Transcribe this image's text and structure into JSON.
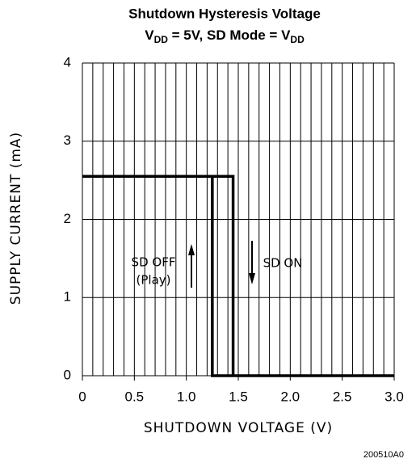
{
  "chart_data": {
    "type": "line",
    "title": "Shutdown Hysteresis Voltage",
    "subtitle": [
      "V",
      "DD",
      " = 5V, SD Mode = V",
      "DD"
    ],
    "x_label": "SHUTDOWN VOLTAGE (V)",
    "y_label": "SUPPLY CURRENT (mA)",
    "xlim": [
      0,
      3.0
    ],
    "ylim": [
      0,
      4
    ],
    "xticks": [
      0,
      0.5,
      {
        "value": 1.0,
        "label": "1.0"
      },
      1.5,
      {
        "value": 2.0,
        "label": "2.0"
      },
      2.5,
      {
        "value": 3.0,
        "label": "3.0"
      }
    ],
    "yticks": [
      0,
      1,
      2,
      3,
      4
    ],
    "grid": true,
    "x_minor_grid": 0.1,
    "series": [
      {
        "color": "#000000",
        "x": [
          0,
          1.45,
          1.45
        ],
        "values": [
          2.55,
          2.55,
          0
        ]
      },
      {
        "color": "#000000",
        "x": [
          1.25,
          1.25,
          3.0
        ],
        "values": [
          2.55,
          0,
          0
        ]
      }
    ],
    "annotations": [
      "SD OFF",
      "(Play)",
      "SD ON"
    ],
    "footnote": "200510A0"
  }
}
